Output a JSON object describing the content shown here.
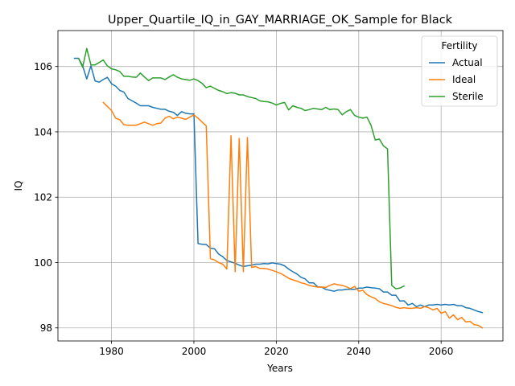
{
  "chart_data": {
    "type": "line",
    "title": "Upper_Quartile_IQ_in_GAY_MARRIAGE_OK_Sample for Black",
    "xlabel": "Years",
    "ylabel": "IQ",
    "xlim": [
      1967,
      2075
    ],
    "ylim": [
      97.6,
      107.1
    ],
    "xticks": [
      1980,
      2000,
      2020,
      2040,
      2060
    ],
    "yticks": [
      98,
      100,
      102,
      104,
      106
    ],
    "grid": true,
    "legend": {
      "title": "Fertility",
      "placement": "top-right"
    },
    "series": [
      {
        "name": "Actual",
        "color": "#1f77b4",
        "x": [
          1971,
          1972,
          1973,
          1974,
          1975,
          1976,
          1977,
          1978,
          1979,
          1980,
          1981,
          1982,
          1983,
          1984,
          1985,
          1986,
          1987,
          1988,
          1989,
          1990,
          1991,
          1992,
          1993,
          1994,
          1995,
          1996,
          1997,
          1998,
          1999,
          2000,
          2001,
          2002,
          2003,
          2004,
          2005,
          2006,
          2007,
          2008,
          2009,
          2010,
          2011,
          2012,
          2013,
          2014,
          2015,
          2016,
          2017,
          2018,
          2019,
          2020,
          2021,
          2022,
          2023,
          2024,
          2025,
          2026,
          2027,
          2028,
          2029,
          2030,
          2031,
          2032,
          2033,
          2034,
          2035,
          2036,
          2037,
          2038,
          2039,
          2040,
          2041,
          2042,
          2043,
          2044,
          2045,
          2046,
          2047,
          2048,
          2049,
          2050,
          2051,
          2052,
          2053,
          2054,
          2055,
          2056,
          2057,
          2058,
          2059,
          2060,
          2061,
          2062,
          2063,
          2064,
          2065,
          2066,
          2067,
          2068,
          2069,
          2070
        ],
        "values": [
          106.25,
          106.25,
          106.02,
          105.62,
          106.02,
          105.56,
          105.52,
          105.6,
          105.67,
          105.47,
          105.4,
          105.27,
          105.22,
          105.02,
          104.95,
          104.88,
          104.8,
          104.8,
          104.8,
          104.75,
          104.72,
          104.69,
          104.69,
          104.63,
          104.6,
          104.5,
          104.62,
          104.57,
          104.55,
          104.55,
          100.58,
          100.56,
          100.55,
          100.44,
          100.42,
          100.26,
          100.18,
          100.06,
          100.02,
          99.98,
          99.92,
          99.88,
          99.9,
          99.92,
          99.95,
          99.95,
          99.97,
          99.96,
          99.99,
          99.97,
          99.95,
          99.9,
          99.8,
          99.72,
          99.65,
          99.55,
          99.5,
          99.38,
          99.38,
          99.26,
          99.25,
          99.18,
          99.15,
          99.12,
          99.16,
          99.16,
          99.18,
          99.18,
          99.18,
          99.22,
          99.22,
          99.25,
          99.23,
          99.22,
          99.2,
          99.1,
          99.1,
          99.0,
          99.0,
          98.82,
          98.83,
          98.7,
          98.75,
          98.65,
          98.7,
          98.65,
          98.7,
          98.7,
          98.72,
          98.7,
          98.72,
          98.7,
          98.72,
          98.68,
          98.68,
          98.62,
          98.6,
          98.55,
          98.5,
          98.47
        ]
      },
      {
        "name": "Ideal",
        "color": "#ff7f0e",
        "x": [
          1978,
          1979,
          1980,
          1981,
          1982,
          1983,
          1984,
          1985,
          1986,
          1987,
          1988,
          1989,
          1990,
          1991,
          1992,
          1993,
          1994,
          1995,
          1996,
          1997,
          1998,
          1999,
          2000,
          2001,
          2002,
          2003,
          2004,
          2005,
          2006,
          2007,
          2008,
          2009,
          2010,
          2011,
          2012,
          2013,
          2014,
          2015,
          2016,
          2017,
          2018,
          2019,
          2020,
          2021,
          2022,
          2023,
          2024,
          2025,
          2026,
          2027,
          2028,
          2029,
          2030,
          2031,
          2032,
          2033,
          2034,
          2035,
          2036,
          2037,
          2038,
          2039,
          2040,
          2041,
          2042,
          2043,
          2044,
          2045,
          2046,
          2047,
          2048,
          2049,
          2050,
          2051,
          2052,
          2053,
          2054,
          2055,
          2056,
          2057,
          2058,
          2059,
          2060,
          2061,
          2062,
          2063,
          2064,
          2065,
          2066,
          2067,
          2068,
          2069,
          2070
        ],
        "values": [
          104.9,
          104.78,
          104.65,
          104.42,
          104.37,
          104.22,
          104.2,
          104.2,
          104.2,
          104.25,
          104.3,
          104.25,
          104.2,
          104.25,
          104.27,
          104.42,
          104.48,
          104.4,
          104.45,
          104.42,
          104.38,
          104.45,
          104.52,
          104.42,
          104.3,
          104.18,
          100.12,
          100.08,
          100.0,
          99.95,
          99.8,
          103.88,
          99.72,
          103.8,
          99.72,
          103.83,
          99.85,
          99.88,
          99.82,
          99.82,
          99.8,
          99.76,
          99.72,
          99.67,
          99.6,
          99.52,
          99.47,
          99.43,
          99.38,
          99.35,
          99.3,
          99.27,
          99.25,
          99.25,
          99.24,
          99.3,
          99.35,
          99.32,
          99.3,
          99.26,
          99.2,
          99.27,
          99.12,
          99.15,
          99.02,
          98.95,
          98.9,
          98.8,
          98.75,
          98.72,
          98.68,
          98.63,
          98.6,
          98.62,
          98.6,
          98.6,
          98.62,
          98.6,
          98.65,
          98.62,
          98.55,
          98.6,
          98.45,
          98.5,
          98.3,
          98.4,
          98.25,
          98.32,
          98.18,
          98.2,
          98.1,
          98.08,
          98.0
        ]
      },
      {
        "name": "Sterile",
        "color": "#2ca02c",
        "x": [
          1972,
          1973,
          1974,
          1975,
          1976,
          1977,
          1978,
          1979,
          1980,
          1981,
          1982,
          1983,
          1984,
          1985,
          1986,
          1987,
          1988,
          1989,
          1990,
          1991,
          1992,
          1993,
          1994,
          1995,
          1996,
          1997,
          1998,
          1999,
          2000,
          2001,
          2002,
          2003,
          2004,
          2005,
          2006,
          2007,
          2008,
          2009,
          2010,
          2011,
          2012,
          2013,
          2014,
          2015,
          2016,
          2017,
          2018,
          2019,
          2020,
          2021,
          2022,
          2023,
          2024,
          2025,
          2026,
          2027,
          2028,
          2029,
          2030,
          2031,
          2032,
          2033,
          2034,
          2035,
          2036,
          2037,
          2038,
          2039,
          2040,
          2041,
          2042,
          2043,
          2044,
          2045,
          2046,
          2047,
          2048,
          2049,
          2050,
          2051
        ],
        "values": [
          106.25,
          105.98,
          106.55,
          106.05,
          106.05,
          106.12,
          106.2,
          106.02,
          105.93,
          105.9,
          105.85,
          105.7,
          105.7,
          105.68,
          105.67,
          105.8,
          105.68,
          105.57,
          105.65,
          105.65,
          105.65,
          105.6,
          105.68,
          105.75,
          105.67,
          105.62,
          105.6,
          105.58,
          105.62,
          105.57,
          105.48,
          105.35,
          105.4,
          105.33,
          105.27,
          105.23,
          105.17,
          105.2,
          105.18,
          105.13,
          105.13,
          105.08,
          105.05,
          105.02,
          104.95,
          104.93,
          104.92,
          104.88,
          104.82,
          104.87,
          104.9,
          104.67,
          104.8,
          104.75,
          104.72,
          104.65,
          104.68,
          104.72,
          104.7,
          104.68,
          104.75,
          104.68,
          104.7,
          104.68,
          104.52,
          104.62,
          104.68,
          104.5,
          104.45,
          104.42,
          104.45,
          104.2,
          103.75,
          103.78,
          103.57,
          103.48,
          99.3,
          99.2,
          99.22,
          99.28
        ]
      }
    ]
  }
}
